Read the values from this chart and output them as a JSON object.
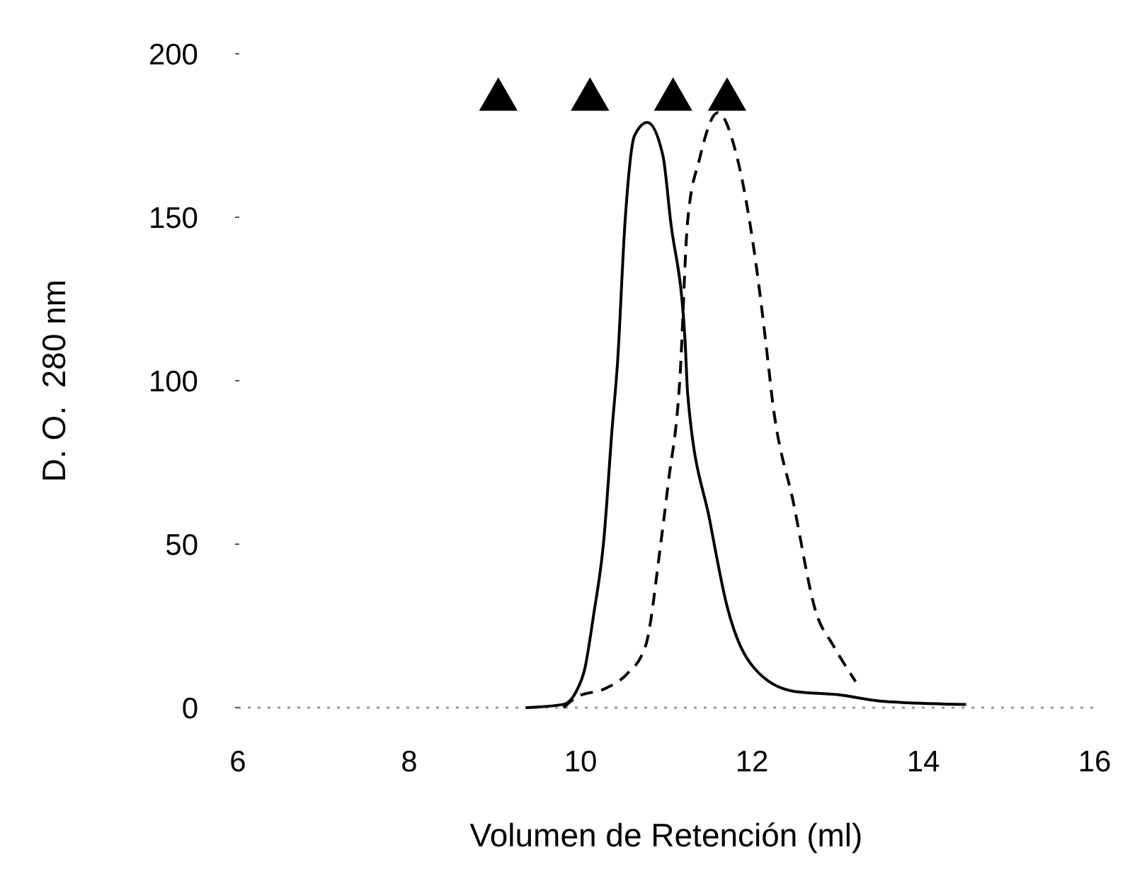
{
  "chart_data": {
    "type": "line",
    "xlabel": "Volumen de Retención (ml)",
    "ylabel": "D. O.  280 nm",
    "xlim": [
      6,
      16
    ],
    "ylim": [
      0,
      200
    ],
    "xticks": [
      6,
      8,
      10,
      12,
      14,
      16
    ],
    "yticks": [
      0,
      50,
      100,
      150,
      200
    ],
    "grid": false,
    "ref_lines": [
      {
        "axis": "y",
        "value": 0,
        "color": "#999999",
        "line_style": "dotted"
      }
    ],
    "series": [
      {
        "color": "#000000",
        "line_style": "solid",
        "marker": "none",
        "x": [
          9.36,
          9.8,
          9.95,
          10.05,
          10.15,
          10.27,
          10.37,
          10.43,
          10.52,
          10.63,
          10.78,
          10.96,
          11.05,
          11.22,
          11.25,
          11.51,
          11.71,
          12.03,
          12.49,
          13.0,
          13.5,
          14.5
        ],
        "values": [
          0,
          1,
          5,
          12,
          28,
          51,
          86,
          105,
          149,
          175,
          179,
          169,
          149,
          112,
          96,
          57,
          31,
          12,
          5,
          4,
          2,
          1
        ]
      },
      {
        "color": "#000000",
        "line_style": "dashed",
        "marker": "none",
        "x": [
          9.8,
          9.94,
          10.3,
          10.53,
          10.76,
          10.93,
          11.02,
          11.16,
          11.25,
          11.39,
          11.6,
          11.83,
          12.03,
          12.2,
          12.23,
          12.49,
          12.75,
          12.95,
          13.21
        ],
        "values": [
          0,
          3,
          6,
          10,
          19,
          49,
          68,
          101,
          149,
          168,
          182,
          168,
          139,
          103,
          96,
          62,
          29,
          19,
          8
        ]
      },
      {
        "type": "scatter",
        "color": "#000000",
        "marker": "triangle",
        "x": [
          9.04,
          10.11,
          11.08,
          11.71
        ],
        "values": [
          186,
          186,
          186,
          186
        ]
      }
    ]
  }
}
